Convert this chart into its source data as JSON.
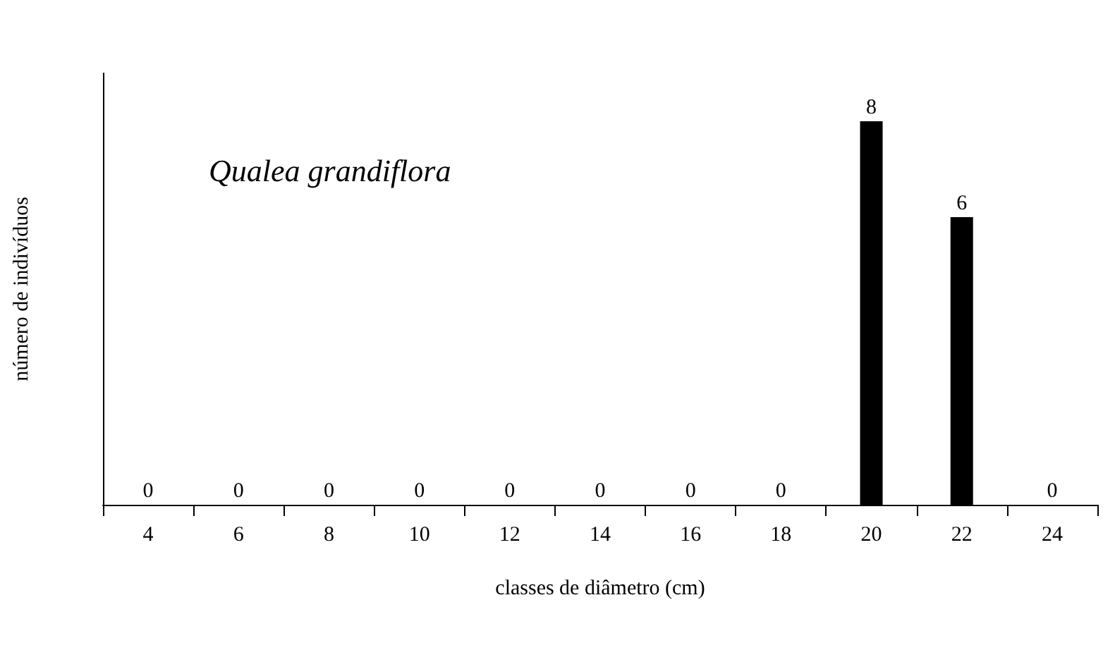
{
  "chart_data": {
    "type": "bar",
    "xlabel": "classes de diâmetro (cm)",
    "ylabel": "número de indivíduos",
    "annotations": [
      "Qualea grandiflora"
    ],
    "categories": [
      "4",
      "6",
      "8",
      "10",
      "12",
      "14",
      "16",
      "18",
      "20",
      "22",
      "24"
    ],
    "values": [
      0,
      0,
      0,
      0,
      0,
      0,
      0,
      0,
      8,
      6,
      0
    ],
    "color": "#000000",
    "ylim": [
      0,
      9
    ],
    "tick_labels": "x",
    "data_labels": true
  }
}
